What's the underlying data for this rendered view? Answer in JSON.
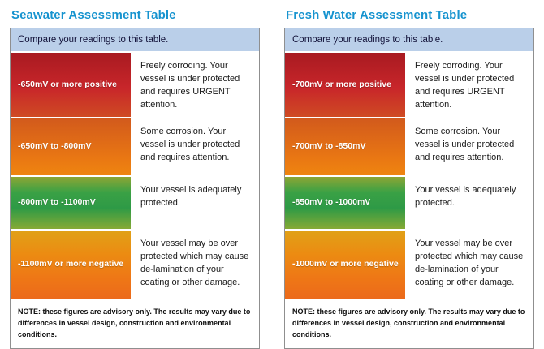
{
  "colors": {
    "title_blue": "#1693cf",
    "header_bg": "#bacfe9",
    "panel_border": "#8f8f8f",
    "row_red": "#c8262a",
    "row_orange_red": "#e97713",
    "row_green": "#2e9a46",
    "row_orange": "#ee7716"
  },
  "chart_data": [
    {
      "type": "table",
      "title": "Seawater Assessment Table",
      "header": "Compare your readings to this table.",
      "rows": [
        {
          "range": "-650mV or more positive",
          "desc": "Freely corroding.  Your vessel is under protected and requires URGENT attention.",
          "color": "red"
        },
        {
          "range": "-650mV to -800mV",
          "desc": "Some corrosion. Your vessel is under protected and requires attention.",
          "color": "orange-red"
        },
        {
          "range": "-800mV to -1100mV",
          "desc": "Your vessel is adequately protected.",
          "color": "green"
        },
        {
          "range": "-1100mV or more negative",
          "desc": "Your vessel may be over protected which may cause de-lamination of your coating or other damage.",
          "color": "orange"
        }
      ],
      "note": "NOTE: these figures are advisory only. The results may vary due to differences in  vessel design, construction and environmental conditions."
    },
    {
      "type": "table",
      "title": "Fresh Water Assessment Table",
      "header": "Compare your readings to this table.",
      "rows": [
        {
          "range": "-700mV or more positive",
          "desc": "Freely corroding.  Your vessel is under protected and requires URGENT attention.",
          "color": "red"
        },
        {
          "range": "-700mV to -850mV",
          "desc": "Some corrosion. Your vessel is under protected and requires attention.",
          "color": "orange-red"
        },
        {
          "range": "-850mV to -1000mV",
          "desc": "Your vessel is adequately protected.",
          "color": "green"
        },
        {
          "range": "-1000mV or more negative",
          "desc": "Your vessel may be over protected which may cause de-lamination of your coating or other damage.",
          "color": "orange"
        }
      ],
      "note": "NOTE: these figures are advisory only. The results may vary due to differences in  vessel design, construction and environmental conditions."
    }
  ]
}
